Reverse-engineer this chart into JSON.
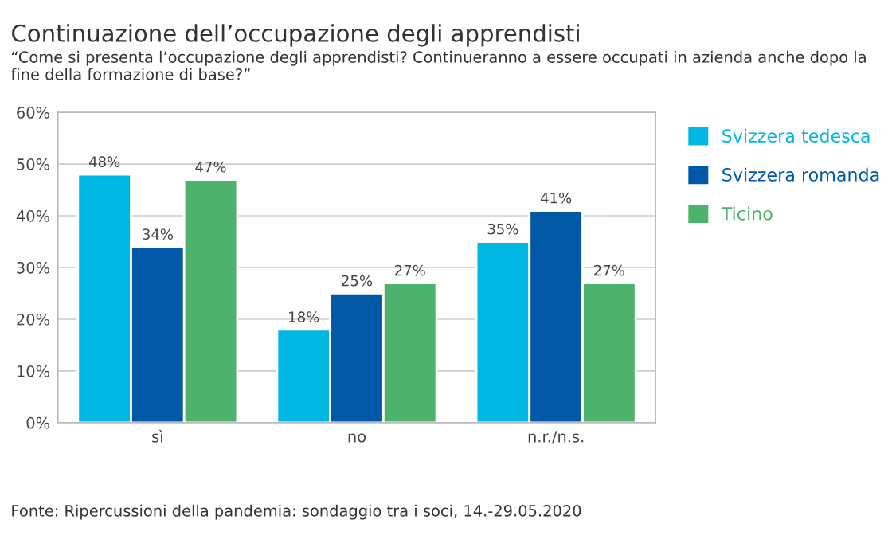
{
  "chart_data": {
    "type": "bar",
    "title": "Continuazione dell’occupazione degli apprendisti",
    "subtitle": "“Come si presenta l’occupazione degli apprendisti? Continueranno a essere occupati in azienda anche dopo la fine della formazione di base?”",
    "categories": [
      "sì",
      "no",
      "n.r./n.s."
    ],
    "series": [
      {
        "name": "Svizzera tedesca",
        "color": "#00b7e3",
        "values": [
          48,
          18,
          35
        ],
        "value_labels": [
          "48%",
          "18%",
          "35%"
        ]
      },
      {
        "name": "Svizzera romanda",
        "color": "#0058a6",
        "values": [
          34,
          25,
          41
        ],
        "value_labels": [
          "34%",
          "25%",
          "41%"
        ]
      },
      {
        "name": "Ticino",
        "color": "#4cb26c",
        "values": [
          47,
          27,
          27
        ],
        "value_labels": [
          "47%",
          "27%",
          "27%"
        ]
      }
    ],
    "ylim": [
      0,
      60
    ],
    "yticks": [
      {
        "value": 0,
        "label": "0%"
      },
      {
        "value": 10,
        "label": "10%"
      },
      {
        "value": 20,
        "label": "20%"
      },
      {
        "value": 30,
        "label": "30%"
      },
      {
        "value": 40,
        "label": "40%"
      },
      {
        "value": 50,
        "label": "50%"
      },
      {
        "value": 60,
        "label": "60%"
      }
    ],
    "grid": "y",
    "legend": "right",
    "annotations": [
      "Fonte: Ripercussioni della pandemia: sondaggio tra i soci, 14.-29.05.2020"
    ]
  }
}
